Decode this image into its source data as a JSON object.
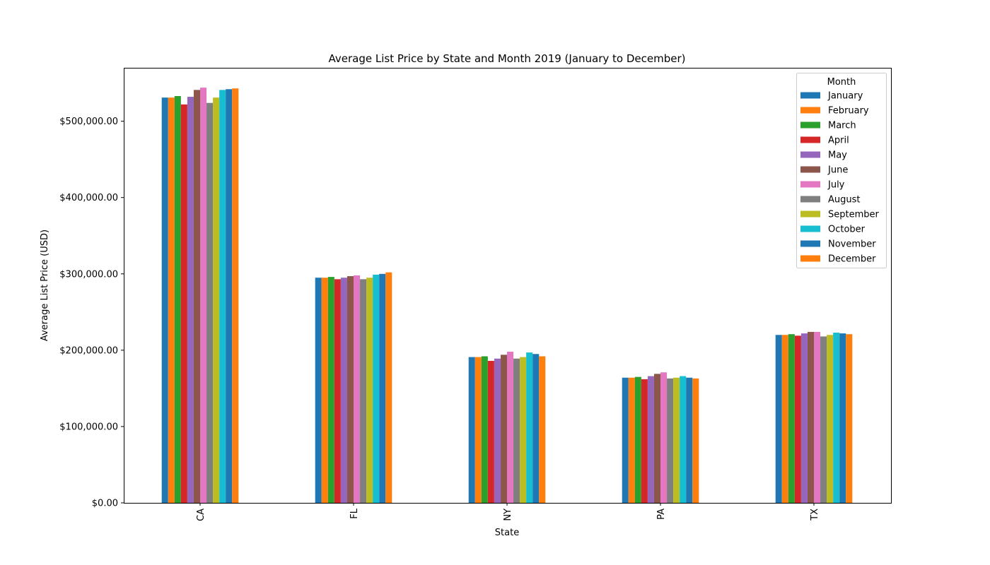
{
  "chart_data": {
    "type": "bar",
    "title": "Average List Price by State and Month 2019 (January to December)",
    "xlabel": "State",
    "ylabel": "Average List Price (USD)",
    "categories": [
      "CA",
      "FL",
      "NY",
      "PA",
      "TX"
    ],
    "ylim": [
      0,
      570000
    ],
    "yticks": [
      0,
      100000,
      200000,
      300000,
      400000,
      500000
    ],
    "ytick_labels": [
      "$0.00",
      "$100,000.00",
      "$200,000.00",
      "$300,000.00",
      "$400,000.00",
      "$500,000.00"
    ],
    "grid": false,
    "legend": {
      "title": "Month",
      "placement": "top-right"
    },
    "series": [
      {
        "name": "January",
        "color": "#1f77b4",
        "values": [
          531000,
          295000,
          191000,
          164000,
          220000
        ]
      },
      {
        "name": "February",
        "color": "#ff7f0e",
        "values": [
          531000,
          295000,
          191000,
          164000,
          220000
        ]
      },
      {
        "name": "March",
        "color": "#2ca02c",
        "values": [
          533000,
          296000,
          192000,
          165000,
          221000
        ]
      },
      {
        "name": "April",
        "color": "#d62728",
        "values": [
          522000,
          293000,
          186000,
          162000,
          219000
        ]
      },
      {
        "name": "May",
        "color": "#9467bd",
        "values": [
          532000,
          295000,
          189000,
          166000,
          222000
        ]
      },
      {
        "name": "June",
        "color": "#8c564b",
        "values": [
          541000,
          297000,
          194000,
          169000,
          224000
        ]
      },
      {
        "name": "July",
        "color": "#e377c2",
        "values": [
          544000,
          298000,
          198000,
          171000,
          224000
        ]
      },
      {
        "name": "August",
        "color": "#7f7f7f",
        "values": [
          524000,
          293000,
          189000,
          163000,
          218000
        ]
      },
      {
        "name": "September",
        "color": "#bcbd22",
        "values": [
          531000,
          295000,
          191000,
          164000,
          220000
        ]
      },
      {
        "name": "October",
        "color": "#17becf",
        "values": [
          541000,
          299000,
          197000,
          166000,
          223000
        ]
      },
      {
        "name": "November",
        "color": "#1f77b4",
        "values": [
          542000,
          300000,
          195000,
          164000,
          222000
        ]
      },
      {
        "name": "December",
        "color": "#ff7f0e",
        "values": [
          543000,
          302000,
          192000,
          163000,
          221000
        ]
      }
    ]
  }
}
